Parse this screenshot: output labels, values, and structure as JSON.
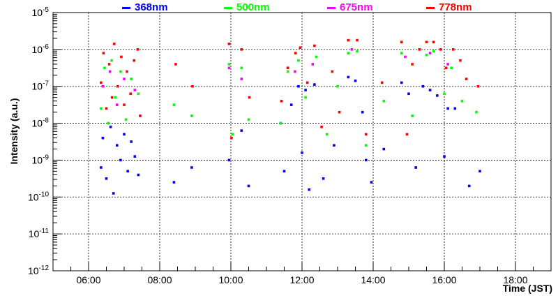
{
  "chart_data": {
    "type": "scatter",
    "title": "",
    "xlabel": "Time (JST)",
    "ylabel": "Intensity (a.u.)",
    "yscale": "log",
    "ylim": [
      1e-12,
      1e-05
    ],
    "xlim_hours": [
      5.0,
      19.0
    ],
    "grid": true,
    "x_ticks": [
      {
        "hour": 6,
        "label": "06:00"
      },
      {
        "hour": 8,
        "label": "08:00"
      },
      {
        "hour": 10,
        "label": "10:00"
      },
      {
        "hour": 12,
        "label": "12:00"
      },
      {
        "hour": 14,
        "label": "14:00"
      },
      {
        "hour": 16,
        "label": "16:00"
      },
      {
        "hour": 18,
        "label": "18:00"
      }
    ],
    "y_ticks": [
      {
        "exp": -12,
        "label": "10-12"
      },
      {
        "exp": -11,
        "label": "10-11"
      },
      {
        "exp": -10,
        "label": "10-10"
      },
      {
        "exp": -9,
        "label": "10-9"
      },
      {
        "exp": -8,
        "label": "10-8"
      },
      {
        "exp": -7,
        "label": "10-7"
      },
      {
        "exp": -6,
        "label": "10-6"
      },
      {
        "exp": -5,
        "label": "10-5"
      }
    ],
    "series": [
      {
        "name": "368nm",
        "color": "#0000ff",
        "points": [
          [
            6.35,
            -9.2
          ],
          [
            6.4,
            -8.4
          ],
          [
            6.5,
            -9.5
          ],
          [
            6.62,
            -8.1
          ],
          [
            6.7,
            -9.9
          ],
          [
            6.8,
            -8.6
          ],
          [
            6.9,
            -9.0
          ],
          [
            7.0,
            -8.3
          ],
          [
            7.1,
            -9.3
          ],
          [
            7.2,
            -8.5
          ],
          [
            7.3,
            -8.9
          ],
          [
            7.4,
            -9.4
          ],
          [
            8.4,
            -9.6
          ],
          [
            8.9,
            -9.2
          ],
          [
            9.95,
            -9.0
          ],
          [
            10.3,
            -8.2
          ],
          [
            10.5,
            -9.7
          ],
          [
            11.4,
            -8.0
          ],
          [
            11.5,
            -9.3
          ],
          [
            11.7,
            -7.5
          ],
          [
            11.9,
            -7.0
          ],
          [
            12.0,
            -8.8
          ],
          [
            12.1,
            -7.1
          ],
          [
            12.2,
            -9.8
          ],
          [
            12.35,
            -6.95
          ],
          [
            12.6,
            -9.5
          ],
          [
            12.9,
            -8.6
          ],
          [
            13.3,
            -6.75
          ],
          [
            13.5,
            -6.85
          ],
          [
            13.7,
            -7.7
          ],
          [
            13.8,
            -9.0
          ],
          [
            13.95,
            -9.6
          ],
          [
            14.3,
            -8.7
          ],
          [
            14.8,
            -6.9
          ],
          [
            15.0,
            -7.2
          ],
          [
            15.2,
            -9.2
          ],
          [
            15.4,
            -7.0
          ],
          [
            15.6,
            -7.1
          ],
          [
            15.8,
            -7.25
          ],
          [
            16.0,
            -8.9
          ],
          [
            16.1,
            -7.6
          ],
          [
            16.3,
            -7.6
          ],
          [
            16.7,
            -9.7
          ],
          [
            17.0,
            -9.3
          ]
        ]
      },
      {
        "name": "500nm",
        "color": "#00ff00",
        "points": [
          [
            6.35,
            -7.6
          ],
          [
            6.45,
            -6.5
          ],
          [
            6.55,
            -8.0
          ],
          [
            6.65,
            -6.3
          ],
          [
            6.75,
            -7.3
          ],
          [
            6.9,
            -6.6
          ],
          [
            7.05,
            -7.9
          ],
          [
            7.2,
            -6.8
          ],
          [
            7.4,
            -7.2
          ],
          [
            8.4,
            -7.5
          ],
          [
            8.9,
            -7.8
          ],
          [
            9.95,
            -6.4
          ],
          [
            10.05,
            -8.3
          ],
          [
            10.3,
            -6.5
          ],
          [
            10.5,
            -7.9
          ],
          [
            11.4,
            -8.0
          ],
          [
            11.6,
            -6.6
          ],
          [
            11.9,
            -6.3
          ],
          [
            12.1,
            -7.3
          ],
          [
            12.4,
            -6.2
          ],
          [
            12.7,
            -8.3
          ],
          [
            13.0,
            -7.0
          ],
          [
            13.3,
            -6.1
          ],
          [
            13.55,
            -6.05
          ],
          [
            13.8,
            -8.6
          ],
          [
            14.3,
            -7.4
          ],
          [
            14.8,
            -6.1
          ],
          [
            15.1,
            -7.8
          ],
          [
            15.5,
            -6.15
          ],
          [
            15.7,
            -6.05
          ],
          [
            16.0,
            -7.2
          ],
          [
            16.2,
            -6.5
          ],
          [
            16.5,
            -7.4
          ],
          [
            16.9,
            -7.7
          ]
        ]
      },
      {
        "name": "675nm",
        "color": "#ff00ff",
        "points": [
          [
            6.4,
            -7.0
          ],
          [
            6.6,
            -6.6
          ],
          [
            6.8,
            -7.5
          ],
          [
            7.0,
            -6.8
          ],
          [
            7.3,
            -7.1
          ],
          [
            9.95,
            -6.5
          ],
          [
            10.3,
            -6.8
          ],
          [
            11.8,
            -6.6
          ],
          [
            12.3,
            -6.4
          ],
          [
            13.4,
            -6.0
          ],
          [
            14.9,
            -6.2
          ],
          [
            15.6,
            -6.1
          ],
          [
            16.1,
            -6.4
          ]
        ]
      },
      {
        "name": "778nm",
        "color": "#ff0000",
        "points": [
          [
            6.35,
            -6.9
          ],
          [
            6.42,
            -6.1
          ],
          [
            6.5,
            -7.6
          ],
          [
            6.58,
            -6.4
          ],
          [
            6.66,
            -7.3
          ],
          [
            6.72,
            -5.85
          ],
          [
            6.82,
            -7.0
          ],
          [
            6.92,
            -6.2
          ],
          [
            7.0,
            -7.5
          ],
          [
            7.08,
            -6.6
          ],
          [
            7.18,
            -7.2
          ],
          [
            7.28,
            -6.3
          ],
          [
            7.38,
            -6.0
          ],
          [
            7.45,
            -7.8
          ],
          [
            8.45,
            -6.4
          ],
          [
            8.92,
            -7.0
          ],
          [
            9.95,
            -5.85
          ],
          [
            10.02,
            -8.4
          ],
          [
            10.3,
            -6.0
          ],
          [
            10.52,
            -7.3
          ],
          [
            11.42,
            -7.4
          ],
          [
            11.6,
            -6.5
          ],
          [
            11.82,
            -6.1
          ],
          [
            11.95,
            -5.95
          ],
          [
            12.15,
            -6.9
          ],
          [
            12.35,
            -5.9
          ],
          [
            12.55,
            -8.1
          ],
          [
            12.85,
            -6.6
          ],
          [
            13.05,
            -7.7
          ],
          [
            13.3,
            -5.75
          ],
          [
            13.55,
            -5.75
          ],
          [
            13.8,
            -8.3
          ],
          [
            14.25,
            -6.9
          ],
          [
            14.8,
            -5.8
          ],
          [
            14.95,
            -8.3
          ],
          [
            15.1,
            -6.4
          ],
          [
            15.3,
            -6.0
          ],
          [
            15.5,
            -5.8
          ],
          [
            15.7,
            -5.8
          ],
          [
            15.9,
            -6.0
          ],
          [
            16.05,
            -6.5
          ],
          [
            16.25,
            -6.0
          ],
          [
            16.45,
            -6.3
          ],
          [
            16.62,
            -6.8
          ],
          [
            16.95,
            -7.0
          ]
        ]
      }
    ]
  }
}
